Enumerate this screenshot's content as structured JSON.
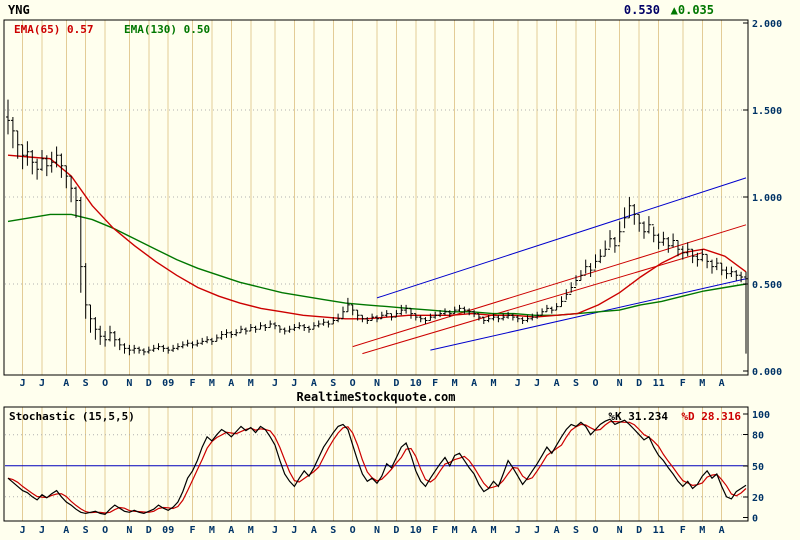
{
  "header": {
    "symbol": "YNG",
    "price": "0.530",
    "change": "▲0.035"
  },
  "overlays": {
    "ema65_label": "EMA(65) 0.57",
    "ema130_label": "EMA(130) 0.50"
  },
  "watermark": "RealtimeStockquote.com",
  "stoch_panel": {
    "title": "Stochastic (15,5,5)",
    "k_label": "%K 31.234",
    "d_label": "%D 28.316"
  },
  "axes": {
    "main_y": {
      "labels": [
        "2.000",
        "1.500",
        "1.000",
        "0.500",
        "0.000"
      ],
      "values": [
        2.0,
        1.5,
        1.0,
        0.5,
        0.0
      ]
    },
    "stoch_y": {
      "labels": [
        "100",
        "80",
        "50",
        "20",
        "0"
      ],
      "values": [
        100,
        80,
        50,
        20,
        0
      ]
    }
  },
  "colors": {
    "bg": "#FFFFEE",
    "grid": "#E3CC96",
    "axis_text": "#003366",
    "border": "#000000",
    "ema65": "#CC0000",
    "ema130": "#007700",
    "trend_blue": "#0000CC",
    "stoch_k": "#000000",
    "stoch_d": "#CC0000",
    "ref_blue": "#0000BB",
    "dotted": "#B0B0B0",
    "price": "#000066",
    "change_up": "#007700"
  },
  "chart_data": [
    {
      "type": "candlestick",
      "name": "YNG weekly price 2008-2011",
      "ylim": [
        0,
        2
      ],
      "x_labels": [
        "J",
        "J",
        "A",
        "S",
        "O",
        "N",
        "D",
        "09",
        "F",
        "M",
        "A",
        "M",
        "J",
        "J",
        "A",
        "S",
        "O",
        "N",
        "D",
        "10",
        "F",
        "M",
        "A",
        "M",
        "J",
        "J",
        "A",
        "S",
        "O",
        "N",
        "D",
        "11",
        "F",
        "M",
        "A"
      ],
      "month_week_index": [
        3,
        7,
        12,
        16,
        20,
        25,
        29,
        33,
        38,
        42,
        46,
        50,
        55,
        59,
        63,
        67,
        71,
        76,
        80,
        84,
        88,
        92,
        96,
        100,
        105,
        109,
        113,
        117,
        121,
        126,
        130,
        134,
        139,
        143,
        147
      ],
      "bars": {
        "highs": [
          1.56,
          1.46,
          1.38,
          1.3,
          1.32,
          1.27,
          1.22,
          1.27,
          1.24,
          1.26,
          1.29,
          1.25,
          1.18,
          1.12,
          1.06,
          1.0,
          0.62,
          0.38,
          0.31,
          0.26,
          0.23,
          0.26,
          0.23,
          0.19,
          0.16,
          0.15,
          0.15,
          0.14,
          0.13,
          0.14,
          0.15,
          0.16,
          0.15,
          0.14,
          0.15,
          0.16,
          0.17,
          0.18,
          0.17,
          0.18,
          0.19,
          0.2,
          0.19,
          0.21,
          0.23,
          0.24,
          0.23,
          0.24,
          0.26,
          0.25,
          0.27,
          0.26,
          0.28,
          0.27,
          0.29,
          0.28,
          0.26,
          0.25,
          0.26,
          0.27,
          0.28,
          0.27,
          0.26,
          0.28,
          0.29,
          0.3,
          0.29,
          0.31,
          0.33,
          0.37,
          0.42,
          0.38,
          0.35,
          0.32,
          0.31,
          0.33,
          0.32,
          0.34,
          0.35,
          0.33,
          0.35,
          0.38,
          0.38,
          0.36,
          0.33,
          0.32,
          0.31,
          0.33,
          0.34,
          0.35,
          0.36,
          0.35,
          0.37,
          0.38,
          0.37,
          0.36,
          0.35,
          0.33,
          0.31,
          0.32,
          0.33,
          0.32,
          0.33,
          0.34,
          0.33,
          0.32,
          0.31,
          0.32,
          0.33,
          0.34,
          0.36,
          0.38,
          0.37,
          0.39,
          0.43,
          0.47,
          0.51,
          0.55,
          0.58,
          0.64,
          0.62,
          0.67,
          0.7,
          0.75,
          0.81,
          0.77,
          0.86,
          0.94,
          1.0,
          0.96,
          0.9,
          0.86,
          0.89,
          0.83,
          0.79,
          0.8,
          0.77,
          0.79,
          0.75,
          0.72,
          0.74,
          0.7,
          0.68,
          0.7,
          0.67,
          0.64,
          0.65,
          0.62,
          0.6,
          0.6,
          0.58,
          0.57,
          0.57
        ],
        "lows": [
          1.36,
          1.28,
          1.22,
          1.16,
          1.18,
          1.13,
          1.1,
          1.15,
          1.12,
          1.14,
          1.17,
          1.11,
          1.05,
          0.97,
          0.88,
          0.45,
          0.3,
          0.22,
          0.18,
          0.15,
          0.14,
          0.17,
          0.14,
          0.12,
          0.1,
          0.09,
          0.1,
          0.1,
          0.09,
          0.1,
          0.11,
          0.12,
          0.11,
          0.1,
          0.11,
          0.12,
          0.13,
          0.14,
          0.13,
          0.14,
          0.15,
          0.16,
          0.15,
          0.17,
          0.18,
          0.19,
          0.19,
          0.2,
          0.22,
          0.21,
          0.23,
          0.22,
          0.24,
          0.23,
          0.25,
          0.24,
          0.22,
          0.21,
          0.22,
          0.23,
          0.24,
          0.23,
          0.22,
          0.24,
          0.25,
          0.26,
          0.25,
          0.27,
          0.28,
          0.3,
          0.34,
          0.32,
          0.29,
          0.28,
          0.27,
          0.29,
          0.28,
          0.3,
          0.31,
          0.29,
          0.31,
          0.32,
          0.33,
          0.3,
          0.29,
          0.28,
          0.27,
          0.29,
          0.3,
          0.31,
          0.32,
          0.31,
          0.33,
          0.34,
          0.33,
          0.32,
          0.31,
          0.29,
          0.27,
          0.28,
          0.29,
          0.28,
          0.29,
          0.3,
          0.29,
          0.28,
          0.27,
          0.28,
          0.29,
          0.3,
          0.32,
          0.34,
          0.33,
          0.35,
          0.37,
          0.41,
          0.45,
          0.49,
          0.52,
          0.56,
          0.54,
          0.59,
          0.62,
          0.66,
          0.71,
          0.68,
          0.74,
          0.82,
          0.88,
          0.84,
          0.8,
          0.76,
          0.79,
          0.74,
          0.7,
          0.72,
          0.68,
          0.71,
          0.66,
          0.64,
          0.66,
          0.62,
          0.6,
          0.63,
          0.59,
          0.56,
          0.58,
          0.55,
          0.53,
          0.54,
          0.52,
          0.51,
          0.1
        ],
        "closes": [
          1.44,
          1.38,
          1.3,
          1.24,
          1.26,
          1.2,
          1.16,
          1.22,
          1.18,
          1.2,
          1.24,
          1.18,
          1.12,
          1.05,
          0.98,
          0.6,
          0.38,
          0.3,
          0.24,
          0.2,
          0.18,
          0.22,
          0.18,
          0.15,
          0.13,
          0.12,
          0.13,
          0.12,
          0.11,
          0.12,
          0.13,
          0.14,
          0.13,
          0.12,
          0.13,
          0.14,
          0.15,
          0.16,
          0.15,
          0.16,
          0.17,
          0.18,
          0.17,
          0.19,
          0.21,
          0.22,
          0.21,
          0.22,
          0.24,
          0.23,
          0.25,
          0.24,
          0.26,
          0.25,
          0.27,
          0.26,
          0.24,
          0.23,
          0.24,
          0.25,
          0.26,
          0.25,
          0.24,
          0.26,
          0.27,
          0.28,
          0.27,
          0.29,
          0.3,
          0.34,
          0.38,
          0.35,
          0.32,
          0.3,
          0.29,
          0.31,
          0.3,
          0.32,
          0.33,
          0.31,
          0.33,
          0.35,
          0.36,
          0.33,
          0.31,
          0.3,
          0.29,
          0.31,
          0.32,
          0.33,
          0.34,
          0.33,
          0.35,
          0.36,
          0.35,
          0.34,
          0.33,
          0.31,
          0.29,
          0.3,
          0.31,
          0.3,
          0.31,
          0.32,
          0.31,
          0.3,
          0.29,
          0.3,
          0.31,
          0.32,
          0.34,
          0.36,
          0.35,
          0.37,
          0.4,
          0.44,
          0.48,
          0.52,
          0.55,
          0.6,
          0.58,
          0.63,
          0.66,
          0.7,
          0.76,
          0.72,
          0.8,
          0.88,
          0.95,
          0.9,
          0.85,
          0.8,
          0.84,
          0.78,
          0.74,
          0.76,
          0.72,
          0.75,
          0.7,
          0.68,
          0.7,
          0.66,
          0.64,
          0.67,
          0.63,
          0.6,
          0.62,
          0.58,
          0.56,
          0.57,
          0.55,
          0.54,
          0.53
        ]
      },
      "series": [
        {
          "name": "EMA(65)",
          "last": 0.57,
          "color": "#CC0000",
          "values": [
            1.24,
            1.23,
            1.22,
            1.12,
            0.95,
            0.82,
            0.72,
            0.63,
            0.55,
            0.48,
            0.43,
            0.39,
            0.36,
            0.34,
            0.32,
            0.31,
            0.3,
            0.3,
            0.31,
            0.32,
            0.32,
            0.32,
            0.33,
            0.32,
            0.32,
            0.31,
            0.32,
            0.33,
            0.38,
            0.45,
            0.54,
            0.62,
            0.68,
            0.7,
            0.66,
            0.57
          ]
        },
        {
          "name": "EMA(130)",
          "last": 0.5,
          "color": "#007700",
          "values": [
            0.86,
            0.88,
            0.9,
            0.9,
            0.87,
            0.82,
            0.76,
            0.7,
            0.64,
            0.59,
            0.55,
            0.51,
            0.48,
            0.45,
            0.43,
            0.41,
            0.39,
            0.38,
            0.37,
            0.36,
            0.35,
            0.34,
            0.34,
            0.33,
            0.33,
            0.32,
            0.32,
            0.33,
            0.34,
            0.35,
            0.38,
            0.4,
            0.43,
            0.46,
            0.48,
            0.5
          ]
        }
      ],
      "trendlines": [
        {
          "color": "#0000CC",
          "w1": 76,
          "v1": 0.42,
          "w2": 152,
          "v2": 1.11
        },
        {
          "color": "#0000CC",
          "w1": 87,
          "v1": 0.12,
          "w2": 152,
          "v2": 0.53
        },
        {
          "color": "#CC0000",
          "w1": 71,
          "v1": 0.14,
          "w2": 152,
          "v2": 0.84
        },
        {
          "color": "#CC0000",
          "w1": 73,
          "v1": 0.1,
          "w2": 143,
          "v2": 0.68
        }
      ]
    },
    {
      "type": "line",
      "name": "Stochastic (15,5,5)",
      "ylim": [
        0,
        100
      ],
      "series": [
        {
          "name": "%K",
          "last": 31.234,
          "color": "#000000",
          "values": [
            38,
            34,
            30,
            26,
            24,
            20,
            17,
            22,
            19,
            23,
            26,
            20,
            15,
            12,
            8,
            5,
            4,
            5,
            6,
            4,
            3,
            8,
            12,
            9,
            6,
            5,
            7,
            5,
            4,
            6,
            8,
            12,
            9,
            7,
            10,
            15,
            25,
            38,
            45,
            55,
            68,
            78,
            74,
            80,
            85,
            82,
            78,
            83,
            88,
            84,
            87,
            82,
            88,
            85,
            78,
            70,
            55,
            42,
            35,
            30,
            38,
            45,
            40,
            48,
            58,
            68,
            75,
            82,
            88,
            90,
            85,
            70,
            55,
            42,
            35,
            38,
            33,
            40,
            52,
            48,
            58,
            68,
            72,
            60,
            45,
            35,
            30,
            38,
            45,
            52,
            58,
            50,
            60,
            62,
            55,
            48,
            42,
            32,
            25,
            28,
            35,
            30,
            42,
            55,
            48,
            40,
            32,
            38,
            45,
            52,
            60,
            68,
            62,
            70,
            78,
            85,
            90,
            88,
            92,
            88,
            80,
            85,
            90,
            93,
            95,
            90,
            92,
            94,
            90,
            85,
            80,
            75,
            78,
            68,
            60,
            55,
            48,
            42,
            35,
            30,
            35,
            28,
            32,
            40,
            45,
            38,
            42,
            30,
            20,
            18,
            25,
            28,
            31.2
          ]
        },
        {
          "name": "%D",
          "last": 28.316,
          "color": "#CC0000",
          "derived_from": "3-week SMA of %K"
        }
      ],
      "ref_lines": [
        {
          "value": 80,
          "style": "dotted",
          "color": "#B0B0B0"
        },
        {
          "value": 50,
          "style": "solid",
          "color": "#0000BB"
        },
        {
          "value": 20,
          "style": "dotted",
          "color": "#B0B0B0"
        }
      ]
    }
  ]
}
